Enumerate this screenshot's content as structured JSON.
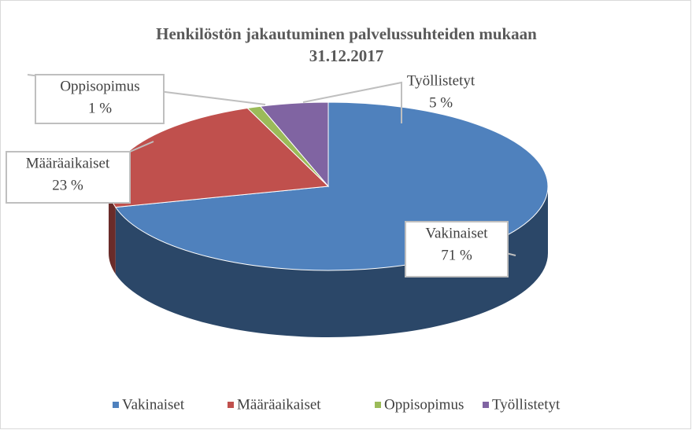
{
  "chart_data": {
    "type": "pie3d",
    "title": [
      "Henkilöstön jakautuminen palvelussuhteiden mukaan",
      "31.12.2017"
    ],
    "categories": [
      "Vakinaiset",
      "Määräaikaiset",
      "Oppisopimus",
      "Työllistetyt"
    ],
    "values": [
      71,
      23,
      1,
      5
    ],
    "value_labels": [
      "71 %",
      "23 %",
      "1 %",
      "5 %"
    ],
    "colors": [
      "#4f81bd",
      "#c0504d",
      "#9bbb59",
      "#8064a2"
    ],
    "legend": "bottom"
  }
}
